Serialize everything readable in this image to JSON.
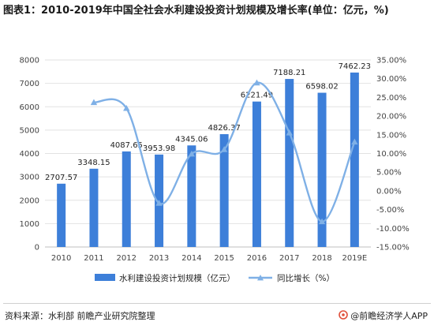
{
  "title": "图表1：2010-2019年中国全社会水利建设投资计划规模及增长率(单位：亿元，%)",
  "source": "资料来源：水利部 前瞻产业研究院整理",
  "brand": "@前瞻经济学人APP",
  "brand_icon": "qianzhan-logo-icon",
  "colors": {
    "bar": "#3d7fd9",
    "line": "#7fb0e6",
    "grid": "#e2e2e2",
    "axis_text": "#444444"
  },
  "chart_data": {
    "type": "bar",
    "categories": [
      "2010",
      "2011",
      "2012",
      "2013",
      "2014",
      "2015",
      "2016",
      "2017",
      "2018",
      "2019E"
    ],
    "series": [
      {
        "name": "水利建设投资计划规模（亿元）",
        "type": "bar",
        "axis": "left",
        "values": [
          2707.57,
          3348.15,
          4087.65,
          3953.98,
          4345.06,
          4826.37,
          6221.49,
          7188.21,
          6598.02,
          7462.23
        ],
        "labels": [
          "2707.57",
          "3348.15",
          "4087.65",
          "3953.98",
          "4345.06",
          "4826.37",
          "6221.49",
          "7188.21",
          "6598.02",
          "7462.23"
        ]
      },
      {
        "name": "同比增长（%）",
        "type": "line",
        "axis": "right",
        "values": [
          null,
          23.66,
          22.09,
          -3.27,
          9.89,
          11.08,
          28.91,
          15.54,
          -8.21,
          13.1
        ]
      }
    ],
    "y_left": {
      "range": [
        0,
        8000
      ],
      "ticks": [
        "0",
        "1000",
        "2000",
        "3000",
        "4000",
        "5000",
        "6000",
        "7000",
        "8000"
      ]
    },
    "y_right": {
      "range": [
        -15,
        35
      ],
      "ticks": [
        "-15.00%",
        "-10.00%",
        "-5.00%",
        "0.00%",
        "5.00%",
        "10.00%",
        "15.00%",
        "20.00%",
        "25.00%",
        "30.00%",
        "35.00%"
      ]
    },
    "grid": true,
    "legend": "bottom-center"
  }
}
